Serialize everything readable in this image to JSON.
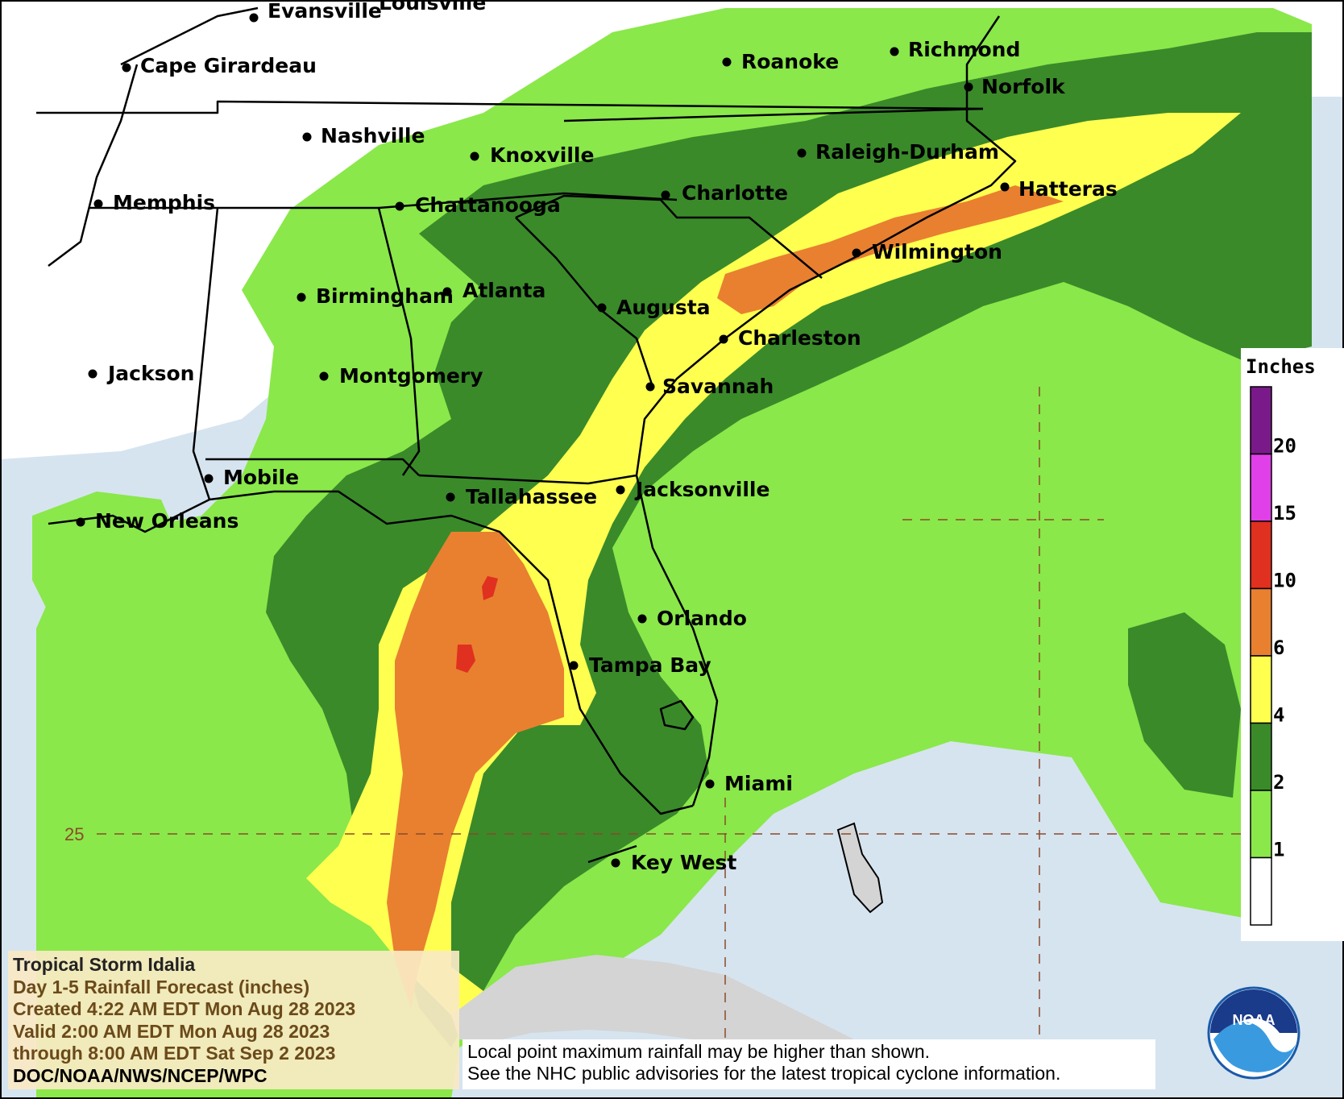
{
  "cities": [
    {
      "name": "Evansville"
    },
    {
      "name": "Louisville"
    },
    {
      "name": "Cape Girardeau"
    },
    {
      "name": "Roanoke"
    },
    {
      "name": "Richmond"
    },
    {
      "name": "Norfolk"
    },
    {
      "name": "Nashville"
    },
    {
      "name": "Knoxville"
    },
    {
      "name": "Raleigh-Durham"
    },
    {
      "name": "Memphis"
    },
    {
      "name": "Chattanooga"
    },
    {
      "name": "Charlotte"
    },
    {
      "name": "Hatteras"
    },
    {
      "name": "Wilmington"
    },
    {
      "name": "Birmingham"
    },
    {
      "name": "Atlanta"
    },
    {
      "name": "Augusta"
    },
    {
      "name": "Charleston"
    },
    {
      "name": "Jackson"
    },
    {
      "name": "Montgomery"
    },
    {
      "name": "Savannah"
    },
    {
      "name": "Mobile"
    },
    {
      "name": "Tallahassee"
    },
    {
      "name": "Jacksonville"
    },
    {
      "name": "New Orleans"
    },
    {
      "name": "Orlando"
    },
    {
      "name": "Tampa Bay"
    },
    {
      "name": "Miami"
    },
    {
      "name": "Key West"
    }
  ],
  "grid": {
    "latitude_label": "25"
  },
  "legend": {
    "title": "Inches",
    "ticks": [
      "20",
      "15",
      "10",
      "6",
      "4",
      "2",
      "1"
    ],
    "bands": [
      {
        "range": ">20",
        "color": "#7a1a8a"
      },
      {
        "range": "15-20",
        "color": "#e040e8"
      },
      {
        "range": "10-15",
        "color": "#e03020"
      },
      {
        "range": "6-10",
        "color": "#e88030"
      },
      {
        "range": "4-6",
        "color": "#ffff50"
      },
      {
        "range": "2-4",
        "color": "#3a8a2a"
      },
      {
        "range": "1-2",
        "color": "#8ae84a"
      },
      {
        "range": "<1",
        "color": "#ffffff"
      }
    ]
  },
  "colors": {
    "ocean": "#d6e4f0",
    "land_none": "#ffffff",
    "light_green": "#8ae84a",
    "dark_green": "#3a8a2a",
    "yellow": "#ffff50",
    "orange": "#e88030",
    "red": "#e03020",
    "gray_land": "#d4d4d4"
  },
  "info": {
    "storm_name": "Tropical Storm Idalia",
    "product": "Day 1-5 Rainfall Forecast (inches)",
    "created": "Created 4:22 AM EDT Mon Aug 28 2023",
    "valid": "Valid 2:00 AM EDT Mon Aug 28 2023",
    "through": "through 8:00 AM EDT Sat Sep 2 2023",
    "credit": "DOC/NOAA/NWS/NCEP/WPC"
  },
  "note": {
    "line1": "Local point maximum rainfall may be higher than shown.",
    "line2": "See the NHC public advisories for the latest tropical cyclone information."
  },
  "logo": {
    "text": "NOAA"
  }
}
